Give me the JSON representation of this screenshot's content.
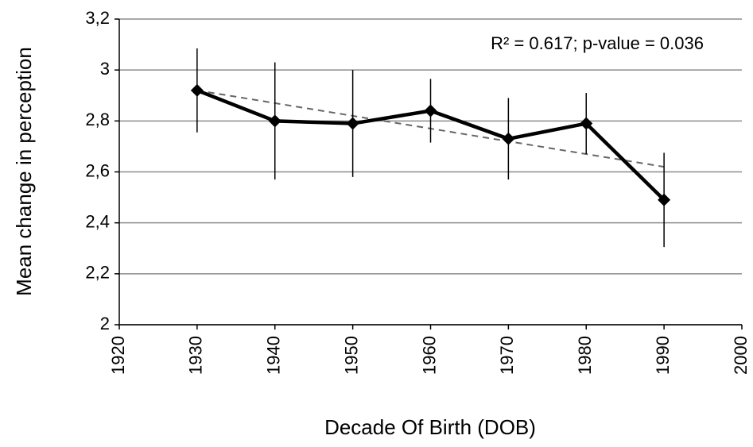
{
  "chart_data": {
    "type": "line",
    "x_label": "Decade Of Birth (DOB)",
    "y_label": "Mean change in perception",
    "annotation": "R² = 0.617; p-value = 0.036",
    "x": [
      1930,
      1940,
      1950,
      1960,
      1970,
      1980,
      1990
    ],
    "series": [
      {
        "color": "#000000",
        "values": [
          2.92,
          2.8,
          2.79,
          2.84,
          2.73,
          2.79,
          2.49
        ],
        "errors": [
          0.165,
          0.23,
          0.21,
          0.125,
          0.16,
          0.12,
          0.185
        ]
      }
    ],
    "trendline": {
      "color": "#666666",
      "x": [
        1930,
        1990
      ],
      "values": [
        2.92,
        2.62
      ]
    },
    "xlim": [
      1920,
      2000
    ],
    "xticks": [
      1920,
      1930,
      1940,
      1950,
      1960,
      1970,
      1980,
      1990,
      2000
    ],
    "ylim": [
      2,
      3.2
    ],
    "yticks": [
      2,
      {
        "value": 2.2,
        "label": "2,2"
      },
      {
        "value": 2.4,
        "label": "2,4"
      },
      {
        "value": 2.6,
        "label": "2,6"
      },
      {
        "value": 2.8,
        "label": "2,8"
      },
      3,
      {
        "value": 3.2,
        "label": "3,2"
      }
    ],
    "grid": true
  }
}
